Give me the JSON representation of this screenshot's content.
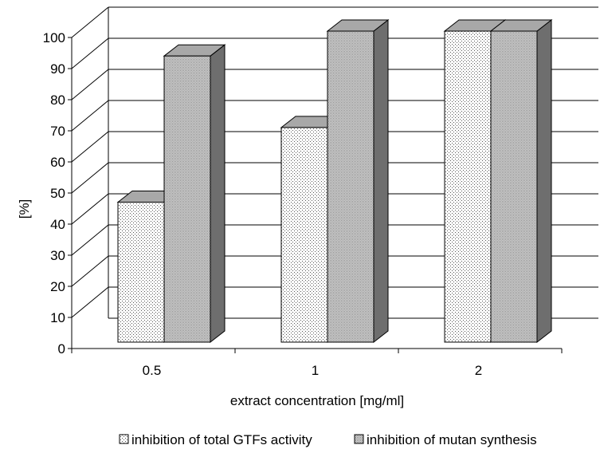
{
  "chart_data": {
    "type": "bar",
    "categories": [
      "0.5",
      "1",
      "2"
    ],
    "series": [
      {
        "name": "inhibition of total GTFs activity",
        "values": [
          45,
          69,
          100
        ]
      },
      {
        "name": "inhibition of mutan synthesis",
        "values": [
          92,
          100,
          100
        ]
      }
    ],
    "xlabel": "extract concentration [mg/ml]",
    "ylabel": "[%]",
    "ylim": [
      0,
      100
    ],
    "yticks": [
      "0",
      "10",
      "20",
      "30",
      "40",
      "50",
      "60",
      "70",
      "80",
      "90",
      "100"
    ],
    "grid": true,
    "legend_position": "bottom",
    "three_d": true
  }
}
